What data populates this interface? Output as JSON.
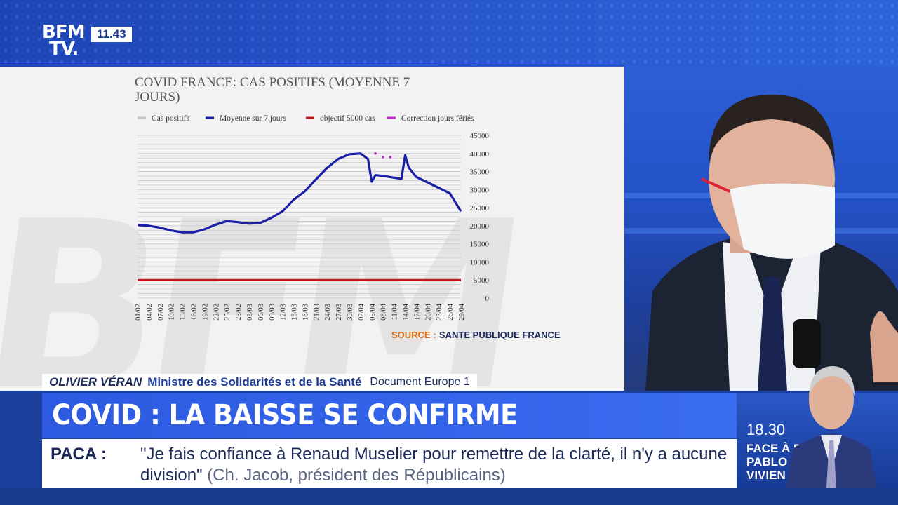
{
  "channel": {
    "logo_line1": "BFM",
    "logo_line2": "TV.",
    "clock": "11.43"
  },
  "chart_data": {
    "type": "line",
    "title": "COVID FRANCE: CAS POSITIFS (MOYENNE 7 JOURS)",
    "legend": [
      {
        "name": "Cas positifs",
        "color": "#c8c8c8"
      },
      {
        "name": "Moyenne sur 7 jours",
        "color": "#1a1fa8"
      },
      {
        "name": "objectif 5000 cas",
        "color": "#c0141c"
      },
      {
        "name": "Correction jours fériés",
        "color": "#c02ad0"
      }
    ],
    "legend_position": "top",
    "x_tick_labels": [
      "01/02",
      "04/02",
      "07/02",
      "10/02",
      "13/02",
      "16/02",
      "19/02",
      "22/02",
      "25/02",
      "28/02",
      "03/03",
      "06/03",
      "09/03",
      "12/03",
      "15/03",
      "18/03",
      "21/03",
      "24/03",
      "27/03",
      "30/03",
      "02/04",
      "05/04",
      "08/04",
      "11/04",
      "14/04",
      "17/04",
      "20/04",
      "23/04",
      "26/04",
      "29/04"
    ],
    "y_ticks": [
      0,
      5000,
      10000,
      15000,
      20000,
      25000,
      30000,
      35000,
      40000,
      45000
    ],
    "ylim": [
      0,
      45000
    ],
    "y_axis_side": "right",
    "grid": true,
    "series": [
      {
        "name": "Moyenne sur 7 jours",
        "x_index": [
          0,
          3,
          6,
          9,
          12,
          15,
          18,
          21,
          24,
          27,
          30,
          33,
          36,
          39,
          42,
          45,
          48,
          51,
          54,
          57,
          60,
          62,
          63,
          64,
          66,
          69,
          71,
          72,
          73,
          75,
          78,
          81,
          84,
          87
        ],
        "values": [
          20200,
          20000,
          19500,
          18700,
          18200,
          18200,
          19000,
          20300,
          21300,
          21000,
          20600,
          20800,
          22200,
          24000,
          27200,
          29500,
          32800,
          36000,
          38500,
          39800,
          40000,
          38500,
          32200,
          34000,
          33800,
          33300,
          33000,
          39500,
          36000,
          33500,
          32000,
          30500,
          29000,
          24000
        ]
      },
      {
        "name": "objectif 5000 cas",
        "x_index": [
          0,
          87
        ],
        "values": [
          5000,
          5000
        ]
      },
      {
        "name": "Correction jours fériés",
        "x_index": [
          64,
          66,
          68
        ],
        "values": [
          40000,
          39000,
          39000
        ]
      }
    ],
    "source_label": "SOURCE : ",
    "source_value": "SANTE PUBLIQUE FRANCE"
  },
  "lower_third": {
    "name": "OLIVIER VÉRAN",
    "role": "Ministre des Solidarités et de la Santé",
    "document": "Document Europe 1",
    "headline": "COVID : LA BAISSE SE CONFIRME",
    "ticker_label": "PACA :",
    "ticker_quote": "\"Je fais confiance à Renaud Muselier pour remettre de la clarté, il n'y a aucune division\"",
    "ticker_source": "(Ch. Jacob, président des Républicains)"
  },
  "promo": {
    "time": "18.30",
    "title": "FACE À DUHAMEL: PABLO PILLAUD-VIVIEN"
  }
}
